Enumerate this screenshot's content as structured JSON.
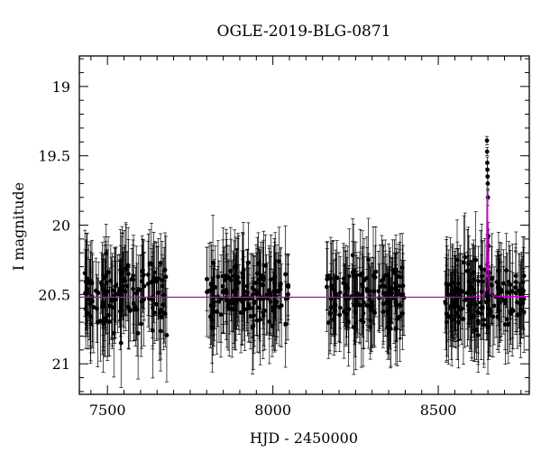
{
  "chart_data": {
    "type": "scatter",
    "title": "OGLE-2019-BLG-0871",
    "xlabel": "HJD - 2450000",
    "ylabel": "I magnitude",
    "xlim": [
      7415,
      8775
    ],
    "ylim": [
      21.22,
      18.78
    ],
    "y_inverted": true,
    "x_ticks": [
      7500,
      8000,
      8500
    ],
    "y_ticks": [
      19,
      19.5,
      20,
      20.5,
      21
    ],
    "y_tick_labels": [
      "19",
      "19.5",
      "20",
      "20.5",
      "21"
    ],
    "grid": false,
    "legend": "none",
    "colors": {
      "points": "#000000",
      "errorbars": "#000000",
      "model": "#cc00cc"
    },
    "observing_seasons": [
      {
        "season": 1,
        "x_range": [
          7430,
          7680
        ],
        "mean_mag": 20.5,
        "spread_mag": 0.3,
        "typical_error": 0.28,
        "points": 150
      },
      {
        "season": 2,
        "x_range": [
          7795,
          8050
        ],
        "mean_mag": 20.5,
        "spread_mag": 0.3,
        "typical_error": 0.28,
        "points": 150
      },
      {
        "season": 3,
        "x_range": [
          8160,
          8400
        ],
        "mean_mag": 20.5,
        "spread_mag": 0.3,
        "typical_error": 0.28,
        "points": 150
      },
      {
        "season": 4,
        "x_range": [
          8520,
          8760
        ],
        "mean_mag": 20.5,
        "spread_mag": 0.3,
        "typical_error": 0.28,
        "points": 170
      }
    ],
    "peak_points": [
      {
        "x": 8647,
        "y": 19.39,
        "err": 0.03
      },
      {
        "x": 8647.5,
        "y": 19.47,
        "err": 0.03
      },
      {
        "x": 8648,
        "y": 19.55,
        "err": 0.04
      },
      {
        "x": 8648.5,
        "y": 19.6,
        "err": 0.04
      },
      {
        "x": 8649,
        "y": 19.65,
        "err": 0.05
      },
      {
        "x": 8649.5,
        "y": 19.7,
        "err": 0.05
      },
      {
        "x": 8650,
        "y": 19.8,
        "err": 0.06
      },
      {
        "x": 8651,
        "y": 20.08,
        "err": 0.1
      },
      {
        "x": 8652,
        "y": 20.15,
        "err": 0.12
      }
    ],
    "model_curve": {
      "name": "",
      "baseline": 20.52,
      "t0": 8648,
      "peak_mag": 19.72,
      "tE": 2.5,
      "x": [
        7415,
        8600,
        8630,
        8640,
        8644,
        8646,
        8647,
        8648,
        8649,
        8650,
        8652,
        8656,
        8665,
        8700,
        8775
      ],
      "y": [
        20.52,
        20.52,
        20.51,
        20.49,
        20.4,
        20.2,
        19.9,
        19.72,
        19.9,
        20.2,
        20.4,
        20.49,
        20.51,
        20.515,
        20.515
      ]
    }
  }
}
